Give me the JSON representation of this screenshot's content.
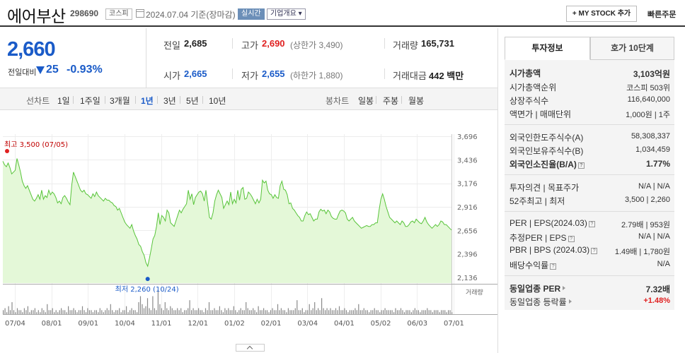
{
  "header": {
    "stock_name": "에어부산",
    "stock_code": "298690",
    "market": "코스피",
    "date": "2024.07.04 기준(장마감)",
    "realtime": "실시간",
    "company_info": "기업개요",
    "mystock_label": "+ MY STOCK 추가",
    "quick_order": "빠른주문"
  },
  "price": {
    "current": "2,660",
    "change_label": "전일대비",
    "change_value": "25",
    "change_pct": "-0.93%",
    "color_down": "#1a5bc8"
  },
  "quotes": {
    "prev_label": "전일",
    "prev": "2,685",
    "high_label": "고가",
    "high": "2,690",
    "upper_limit": "(상한가 3,490)",
    "volume_label": "거래량",
    "volume": "165,731",
    "open_label": "시가",
    "open": "2,665",
    "low_label": "저가",
    "low": "2,655",
    "lower_limit": "(하한가 1,880)",
    "amount_label": "거래대금",
    "amount": "442 백만"
  },
  "ranges": {
    "line_label": "선차트",
    "line": [
      "1일",
      "1주일",
      "3개월",
      "1년",
      "3년",
      "5년",
      "10년"
    ],
    "active": "1년",
    "candle_label": "봉차트",
    "candle": [
      "일봉",
      "주봉",
      "월봉"
    ]
  },
  "chart_data": {
    "type": "area",
    "y_ticks": [
      "3,696",
      "3,436",
      "3,176",
      "2,916",
      "2,656",
      "2,396",
      "2,136"
    ],
    "x_ticks": [
      "07/04",
      "08/01",
      "09/01",
      "10/04",
      "11/01",
      "12/01",
      "01/02",
      "02/01",
      "03/04",
      "04/01",
      "05/02",
      "06/03",
      "07/01"
    ],
    "ylim": [
      2136,
      3696
    ],
    "high_annotation": "최고 3,500 (07/05)",
    "low_annotation": "최저 2,260 (10/24)",
    "volume_label": "거래량",
    "series": [
      {
        "values": [
          3420,
          3380,
          3360,
          3400,
          3350,
          3280,
          3300,
          3320,
          3450,
          3380,
          3300,
          3200,
          3150,
          3120,
          3150,
          3100,
          3050,
          3000,
          2980,
          3010,
          3050,
          3000,
          3100,
          3000,
          3040,
          3020,
          3100,
          3050,
          3080,
          3060,
          3020,
          2960,
          2980,
          2950,
          3020,
          3040,
          3010,
          2970,
          2940,
          3150,
          3300,
          3250,
          3200,
          3150,
          3100,
          3080,
          3100,
          3060,
          3050,
          3030,
          3010,
          3060,
          3030,
          3080,
          3040,
          3020,
          3000,
          2980,
          3010,
          2990,
          2990,
          2970,
          2960,
          2930,
          2920,
          2880,
          2900,
          2850,
          2800,
          2750,
          2720,
          2700,
          2680,
          2720,
          2650,
          2600,
          2560,
          2500,
          2480,
          2420,
          2380,
          2300,
          2260,
          2350,
          2450,
          2560,
          2600,
          2700,
          2850,
          2720,
          2820,
          2800,
          2760,
          2880,
          2850,
          2740,
          2720,
          2700,
          2760,
          2820,
          2880,
          2850,
          2890,
          2920,
          2950,
          3100,
          3000,
          3060,
          2940,
          3020,
          3050,
          3080,
          3090,
          3060,
          2980,
          3100,
          2950,
          2800,
          2780,
          2850,
          2980,
          3050,
          3100,
          3060,
          3020,
          2900,
          2940,
          2980,
          2940,
          3080,
          2950,
          3000,
          2960,
          3100,
          2990,
          3110,
          3130,
          3000,
          3010,
          3080,
          3060,
          3030,
          2990,
          2950,
          3000,
          2960,
          3000,
          3210,
          3180,
          3200,
          3100,
          3060,
          3050,
          3010,
          3050,
          3020,
          3010,
          3150,
          3200,
          3110,
          3100,
          3050,
          2950,
          2960,
          2900,
          2880,
          2850,
          2820,
          2800,
          2760,
          2760,
          2820,
          2860,
          2830,
          2840,
          2800,
          2760,
          2780,
          2780,
          2860,
          2890,
          2870,
          2880,
          2840,
          2880,
          2860,
          2810,
          2790,
          2780,
          2780,
          2830,
          2870,
          2880,
          2870,
          2850,
          2780,
          2760,
          2780,
          2800,
          2760,
          2740,
          2720,
          2700,
          2680,
          2690,
          2700,
          2710,
          2700,
          2700,
          2720,
          2720,
          2740,
          2740,
          2880,
          3000,
          3060,
          3000,
          2920,
          2860,
          2800,
          2780,
          2760,
          2740,
          2760,
          2740,
          2720,
          2760,
          2740,
          2700,
          2700,
          2720,
          2750,
          2760,
          2740,
          2780,
          2760,
          2740,
          2730,
          2760,
          2800,
          2750,
          2720,
          2700,
          2680,
          2700,
          2720,
          2700,
          2720,
          2760,
          2750,
          2720,
          2720,
          2700,
          2680,
          2660
        ]
      }
    ],
    "volume_values": [
      2,
      3,
      1,
      4,
      2,
      6,
      2,
      1,
      3,
      2,
      2,
      1,
      3,
      2,
      4,
      1,
      2,
      2,
      3,
      1,
      2,
      1,
      3,
      2,
      1,
      5,
      2,
      2,
      3,
      1,
      2,
      1,
      2,
      3,
      2,
      2,
      1,
      4,
      2,
      2,
      3,
      2,
      1,
      2,
      2,
      4,
      2,
      1,
      3,
      2,
      2,
      1,
      2,
      2,
      1,
      3,
      2,
      1,
      2,
      3,
      2,
      5,
      2,
      1,
      2,
      2,
      3,
      1,
      2,
      2,
      4,
      1,
      2,
      3,
      2,
      2,
      1,
      6,
      9,
      5,
      3,
      4,
      8,
      3,
      2,
      9,
      3,
      2,
      12,
      5,
      3,
      2,
      6,
      3,
      2,
      4,
      3,
      2,
      2,
      3,
      2,
      3,
      1,
      2,
      2,
      3,
      7,
      2,
      3,
      2,
      2,
      3,
      2,
      2,
      1,
      3,
      2,
      6,
      2,
      2,
      3,
      2,
      2,
      4,
      2,
      1,
      3,
      2,
      3,
      2,
      2,
      4,
      2,
      1,
      2,
      3,
      2,
      2,
      6,
      3,
      2,
      2,
      3,
      2,
      1,
      4,
      2,
      2,
      3,
      2,
      2,
      1,
      2,
      3,
      2,
      2,
      5,
      2,
      3,
      2,
      2,
      1,
      3,
      2,
      2,
      2,
      3,
      7,
      2,
      2,
      3,
      1,
      2,
      2,
      5,
      2,
      3,
      6,
      2,
      3,
      2,
      8,
      3,
      2,
      3,
      2,
      3,
      2,
      2,
      3,
      2,
      4,
      2,
      2,
      3,
      2,
      1,
      2,
      2,
      2,
      3,
      2,
      5,
      2,
      2,
      3,
      2,
      2,
      1,
      2,
      2,
      3,
      2,
      2,
      1,
      2,
      2,
      3,
      2,
      2,
      2,
      2,
      1,
      3,
      2,
      2,
      3,
      2,
      1,
      2,
      2,
      2,
      1,
      2,
      3,
      2,
      2,
      1,
      2,
      2,
      2,
      3,
      2,
      2,
      1,
      2,
      2,
      2,
      1,
      2,
      2,
      2,
      1,
      2,
      2,
      1
    ]
  },
  "right_panel": {
    "tab_invest": "투자정보",
    "tab_orderbook": "호가 10단계",
    "rows": [
      {
        "label": "시가총액",
        "value": "3,103억원",
        "strong": true
      },
      {
        "label": "시가총액순위",
        "value": "코스피 503위"
      },
      {
        "label": "상장주식수",
        "value": "116,640,000"
      },
      {
        "label": "액면가 | 매매단위",
        "value": "1,000원 | 1주"
      },
      {
        "label": "외국인한도주식수(A)",
        "value": "58,308,337"
      },
      {
        "label": "외국인보유주식수(B)",
        "value": "1,034,459"
      },
      {
        "label": "외국인소진율(B/A)",
        "value": "1.77%",
        "strong": true
      },
      {
        "label": "투자의견 | 목표주가",
        "value": "N/A | N/A"
      },
      {
        "label": "52주최고 | 최저",
        "value": "3,500 | 2,260"
      },
      {
        "label": "PER | EPS(2024.03)",
        "value": "2.79배 | 953원"
      },
      {
        "label": "추정PER | EPS",
        "value": "N/A | N/A"
      },
      {
        "label": "PBR | BPS (2024.03)",
        "value": "1.49배 | 1,780원"
      },
      {
        "label": "배당수익률",
        "value": "N/A"
      },
      {
        "label": "동일업종 PER",
        "value": "7.32배",
        "strong": true
      },
      {
        "label": "동일업종 등락률",
        "value": "+1.48%",
        "color": "#e02020"
      }
    ]
  }
}
